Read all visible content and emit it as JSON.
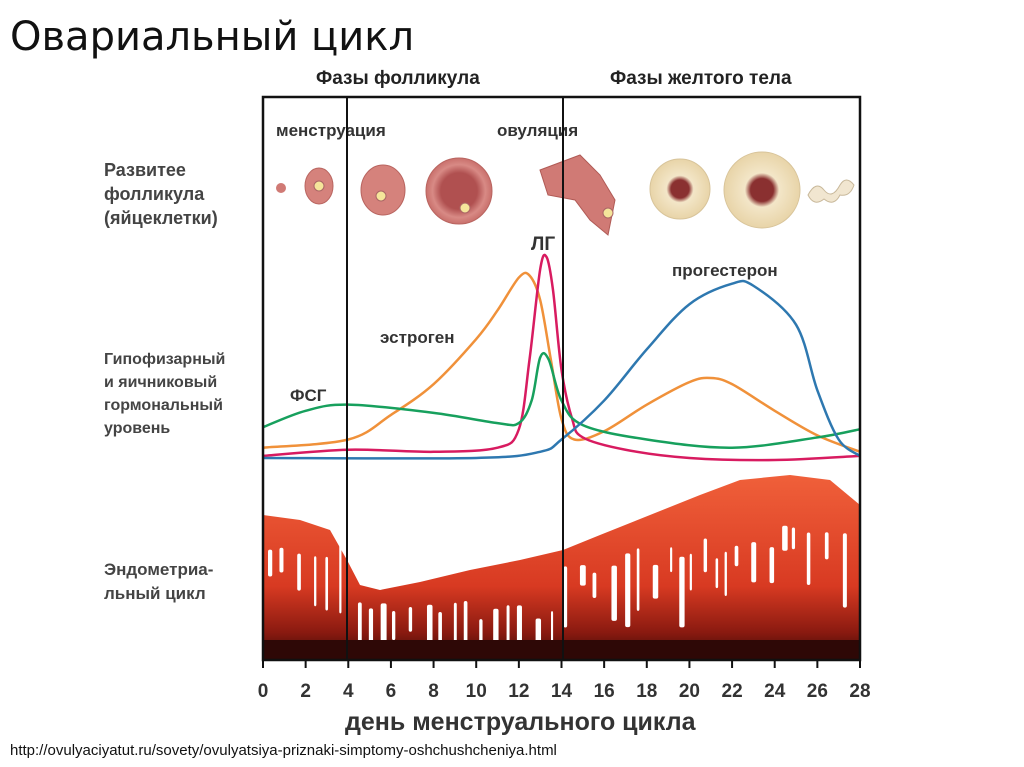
{
  "title": "Овариальный цикл",
  "phases": {
    "follicular": "Фазы фолликула",
    "luteal": "Фазы желтого тела"
  },
  "events": {
    "menstruation": "менструация",
    "ovulation": "овуляция"
  },
  "row_labels": {
    "follicle": [
      "Развитее",
      "фолликула",
      "(яйцеклетки)"
    ],
    "hormones": [
      "Гипофизарный",
      "и яичниковый",
      "гормональный",
      "уровень"
    ],
    "endometrium": [
      "Эндометриа-",
      "льный цикл"
    ]
  },
  "curve_labels": {
    "lh": "ЛГ",
    "estrogen": "эстроген",
    "fsh": "ФСГ",
    "progesterone": "прогестерон"
  },
  "xlabel": "день менструального цикла",
  "source": "http://ovulyaciyatut.ru/sovety/ovulyatsiya-priznaki-simptomy-oshchushcheniya.html",
  "chart_data": {
    "type": "line",
    "xlabel": "день менструального цикла",
    "xlim": [
      0,
      28
    ],
    "ylim": [
      0,
      100
    ],
    "xticks": [
      "0",
      "2",
      "4",
      "6",
      "8",
      "10",
      "12",
      "14",
      "16",
      "18",
      "20",
      "22",
      "24",
      "26",
      "28"
    ],
    "markers": {
      "menstruation_end_day": 4,
      "ovulation_day": 14
    },
    "series": [
      {
        "name": "эстроген",
        "color": "#f0913a",
        "x": [
          0,
          4,
          6,
          8,
          10,
          11,
          12,
          12.5,
          13,
          13.5,
          14,
          14.6,
          16,
          18,
          20,
          21,
          22,
          24,
          26,
          28
        ],
        "y": [
          6,
          10,
          22,
          37,
          59,
          73,
          89,
          90,
          78,
          49,
          20,
          10,
          14,
          27,
          38,
          40,
          37,
          24,
          12,
          4
        ]
      },
      {
        "name": "ЛГ",
        "color": "#d81b60",
        "x": [
          0,
          4,
          8,
          11,
          12,
          12.5,
          13,
          13.3,
          13.6,
          14,
          14.5,
          15,
          17,
          20,
          24,
          28
        ],
        "y": [
          2,
          5,
          4,
          6,
          15,
          49,
          93,
          99,
          83,
          44,
          20,
          11,
          5,
          1,
          0,
          2
        ]
      },
      {
        "name": "ФСГ",
        "color": "#17a05d",
        "x": [
          0,
          2,
          4,
          8,
          11,
          12,
          12.6,
          13,
          13.4,
          14,
          15,
          18,
          22,
          26,
          28
        ],
        "y": [
          16,
          24,
          27,
          23,
          18,
          18,
          29,
          50,
          49,
          29,
          17,
          10,
          6,
          11,
          15
        ]
      },
      {
        "name": "прогестерон",
        "color": "#2e78b0",
        "x": [
          0,
          10,
          13,
          14,
          16,
          18,
          20,
          22,
          23,
          25,
          26,
          27,
          28
        ],
        "y": [
          1,
          1,
          4,
          10,
          29,
          54,
          76,
          86,
          85,
          66,
          34,
          10,
          2
        ]
      }
    ]
  }
}
